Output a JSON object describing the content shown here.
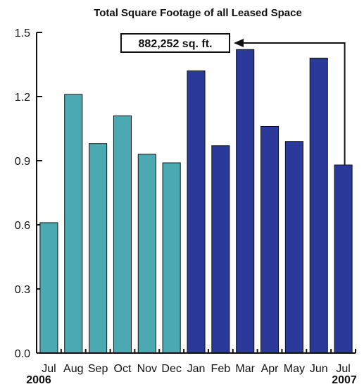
{
  "chart_data": {
    "type": "bar",
    "title": "Total Square Footage of all Leased Space",
    "xlabel": "",
    "ylabel": "",
    "ylim": [
      0,
      1.5
    ],
    "yticks": [
      "0.0",
      "0.3",
      "0.6",
      "0.9",
      "1.2",
      "1.5"
    ],
    "categories": [
      "Jul",
      "Aug",
      "Sep",
      "Oct",
      "Nov",
      "Dec",
      "Jan",
      "Feb",
      "Mar",
      "Apr",
      "May",
      "Jun",
      "Jul"
    ],
    "values": [
      0.61,
      1.21,
      0.98,
      1.11,
      0.93,
      0.89,
      1.32,
      0.97,
      1.42,
      1.06,
      0.99,
      1.38,
      0.88
    ],
    "year_labels": {
      "start": "2006",
      "end": "2007"
    },
    "colors": {
      "2006": "#4aa9b1",
      "2007": "#2b3a9a"
    },
    "grid": false,
    "annotation": {
      "text": "882,252 sq. ft.",
      "target_index": 12
    }
  }
}
